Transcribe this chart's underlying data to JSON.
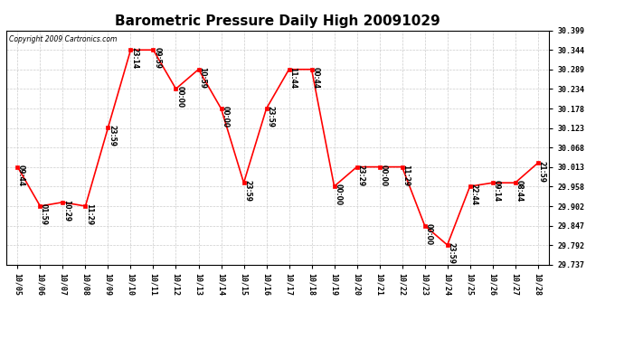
{
  "title": "Barometric Pressure Daily High 20091029",
  "copyright": "Copyright 2009 Cartronics.com",
  "x_labels": [
    "10/05",
    "10/06",
    "10/07",
    "10/08",
    "10/09",
    "10/10",
    "10/11",
    "10/12",
    "10/13",
    "10/14",
    "10/15",
    "10/16",
    "10/17",
    "10/18",
    "10/19",
    "10/20",
    "10/21",
    "10/22",
    "10/23",
    "10/24",
    "10/25",
    "10/26",
    "10/27",
    "10/28"
  ],
  "y_values": [
    30.013,
    29.902,
    29.913,
    29.902,
    30.124,
    30.344,
    30.344,
    30.234,
    30.289,
    30.178,
    29.968,
    30.178,
    30.289,
    30.289,
    29.958,
    30.013,
    30.013,
    30.013,
    29.847,
    29.792,
    29.958,
    29.968,
    29.968,
    30.024
  ],
  "point_labels": [
    "09:44",
    "01:59",
    "10:29",
    "11:29",
    "23:59",
    "23:14",
    "09:59",
    "00:00",
    "10:59",
    "00:00",
    "23:59",
    "23:59",
    "11:44",
    "00:44",
    "00:00",
    "23:29",
    "00:00",
    "11:29",
    "00:00",
    "23:59",
    "22:44",
    "09:14",
    "08:44",
    "21:59"
  ],
  "y_min": 29.737,
  "y_max": 30.399,
  "y_ticks": [
    29.737,
    29.792,
    29.847,
    29.902,
    29.958,
    30.013,
    30.068,
    30.123,
    30.178,
    30.234,
    30.289,
    30.344,
    30.399
  ],
  "line_color": "#ff0000",
  "marker_color": "#ff0000",
  "bg_color": "#ffffff",
  "grid_color": "#cccccc",
  "title_fontsize": 11,
  "label_fontsize": 6,
  "annotation_fontsize": 5.5
}
